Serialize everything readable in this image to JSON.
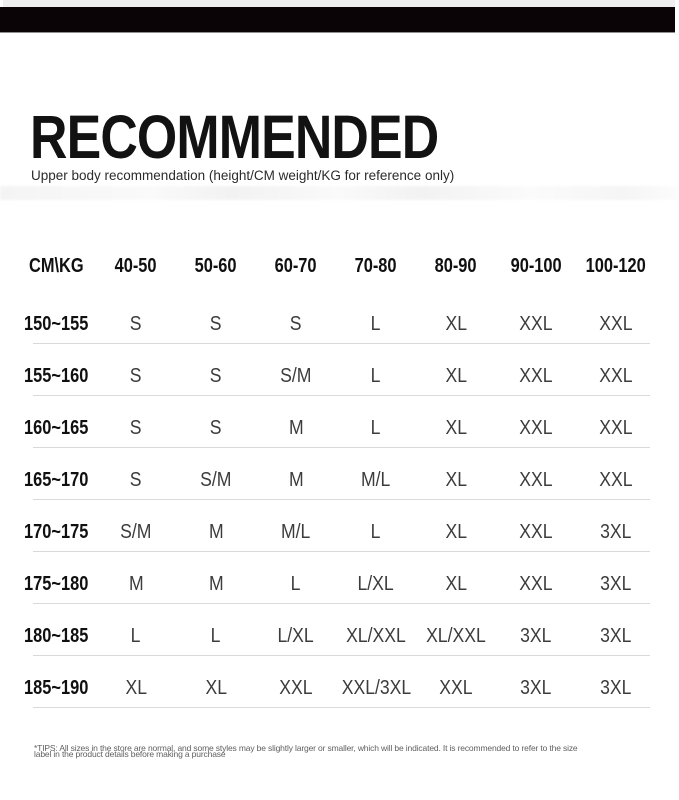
{
  "colors": {
    "banner": "#0b0406",
    "top_strip": "#efefef",
    "separator": "#d9d9d9"
  },
  "header": {
    "title": "RECOMMENDED",
    "subtitle": "Upper body recommendation (height/CM weight/KG for reference only)"
  },
  "size_table": {
    "corner_label": "CM\\KG",
    "weight_columns": [
      "40-50",
      "50-60",
      "60-70",
      "70-80",
      "80-90",
      "90-100",
      "100-120"
    ],
    "rows": [
      {
        "height_range": "150~155",
        "sizes": [
          "S",
          "S",
          "S",
          "L",
          "XL",
          "XXL",
          "XXL"
        ]
      },
      {
        "height_range": "155~160",
        "sizes": [
          "S",
          "S",
          "S/M",
          "L",
          "XL",
          "XXL",
          "XXL"
        ]
      },
      {
        "height_range": "160~165",
        "sizes": [
          "S",
          "S",
          "M",
          "L",
          "XL",
          "XXL",
          "XXL"
        ]
      },
      {
        "height_range": "165~170",
        "sizes": [
          "S",
          "S/M",
          "M",
          "M/L",
          "XL",
          "XXL",
          "XXL"
        ]
      },
      {
        "height_range": "170~175",
        "sizes": [
          "S/M",
          "M",
          "M/L",
          "L",
          "XL",
          "XXL",
          "3XL"
        ]
      },
      {
        "height_range": "175~180",
        "sizes": [
          "M",
          "M",
          "L",
          "L/XL",
          "XL",
          "XXL",
          "3XL"
        ]
      },
      {
        "height_range": "180~185",
        "sizes": [
          "L",
          "L",
          "L/XL",
          "XL/XXL",
          "XL/XXL",
          "3XL",
          "3XL"
        ]
      },
      {
        "height_range": "185~190",
        "sizes": [
          "XL",
          "XL",
          "XXL",
          "XXL/3XL",
          "XXL",
          "3XL",
          "3XL"
        ]
      }
    ]
  },
  "footnote": {
    "line1": "*TIPS: All sizes in the store are normal, and some styles may be slightly larger or smaller, which will be indicated. It is recommended to refer to the size",
    "line2": "label in the product details before making a purchase"
  }
}
